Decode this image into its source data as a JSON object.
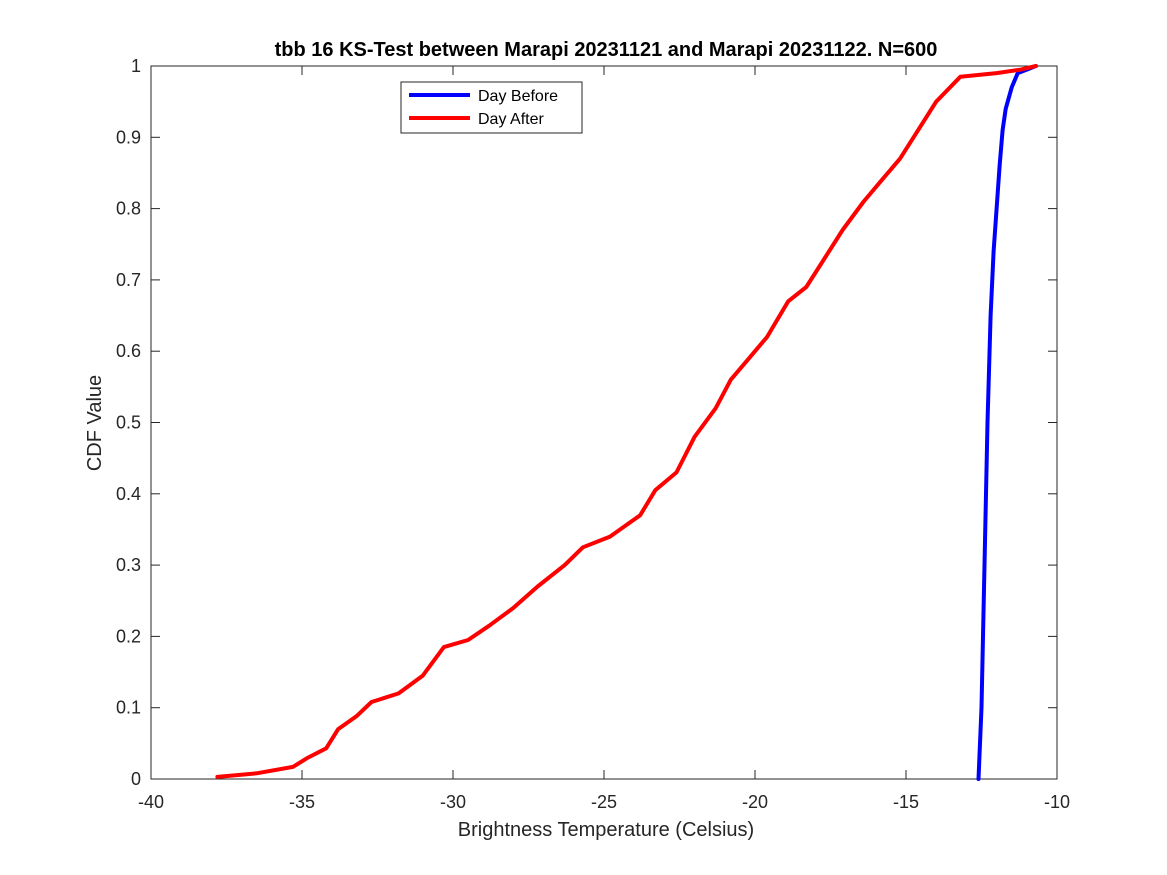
{
  "chart_data": {
    "type": "line",
    "title": "tbb 16 KS-Test between Marapi 20231121 and Marapi 20231122. N=600",
    "xlabel": "Brightness Temperature (Celsius)",
    "ylabel": "CDF Value",
    "xlim": [
      -40,
      -10
    ],
    "ylim": [
      0,
      1
    ],
    "xticks": [
      -40,
      -35,
      -30,
      -25,
      -20,
      -15,
      -10
    ],
    "yticks": [
      0,
      0.1,
      0.2,
      0.3,
      0.4,
      0.5,
      0.6,
      0.7,
      0.8,
      0.9,
      1
    ],
    "xtick_labels": [
      "-40",
      "-35",
      "-30",
      "-25",
      "-20",
      "-15",
      "-10"
    ],
    "ytick_labels": [
      "0",
      "0.1",
      "0.2",
      "0.3",
      "0.4",
      "0.5",
      "0.6",
      "0.7",
      "0.8",
      "0.9",
      "1"
    ],
    "grid": false,
    "legend_position": "top-left",
    "series": [
      {
        "name": "Day Before",
        "color": "#0000ff",
        "points": [
          [
            -12.6,
            0.0
          ],
          [
            -12.5,
            0.1
          ],
          [
            -12.4,
            0.3
          ],
          [
            -12.3,
            0.5
          ],
          [
            -12.2,
            0.65
          ],
          [
            -12.1,
            0.74
          ],
          [
            -12.0,
            0.8
          ],
          [
            -11.9,
            0.86
          ],
          [
            -11.8,
            0.91
          ],
          [
            -11.7,
            0.94
          ],
          [
            -11.5,
            0.97
          ],
          [
            -11.3,
            0.99
          ],
          [
            -11.0,
            0.995
          ],
          [
            -10.7,
            1.0
          ]
        ]
      },
      {
        "name": "Day After",
        "color": "#ff0000",
        "points": [
          [
            -37.8,
            0.003
          ],
          [
            -36.5,
            0.008
          ],
          [
            -35.3,
            0.017
          ],
          [
            -34.8,
            0.03
          ],
          [
            -34.2,
            0.043
          ],
          [
            -33.8,
            0.07
          ],
          [
            -33.2,
            0.088
          ],
          [
            -32.7,
            0.108
          ],
          [
            -31.8,
            0.12
          ],
          [
            -31.0,
            0.145
          ],
          [
            -30.3,
            0.185
          ],
          [
            -29.5,
            0.195
          ],
          [
            -28.8,
            0.215
          ],
          [
            -28.0,
            0.24
          ],
          [
            -27.2,
            0.27
          ],
          [
            -26.3,
            0.3
          ],
          [
            -25.7,
            0.325
          ],
          [
            -24.8,
            0.34
          ],
          [
            -23.8,
            0.37
          ],
          [
            -23.3,
            0.405
          ],
          [
            -22.6,
            0.43
          ],
          [
            -22.0,
            0.48
          ],
          [
            -21.3,
            0.52
          ],
          [
            -20.8,
            0.56
          ],
          [
            -20.2,
            0.59
          ],
          [
            -19.6,
            0.62
          ],
          [
            -18.9,
            0.67
          ],
          [
            -18.3,
            0.69
          ],
          [
            -17.7,
            0.73
          ],
          [
            -17.1,
            0.77
          ],
          [
            -16.4,
            0.81
          ],
          [
            -15.8,
            0.84
          ],
          [
            -15.2,
            0.87
          ],
          [
            -14.6,
            0.91
          ],
          [
            -14.0,
            0.95
          ],
          [
            -13.2,
            0.985
          ],
          [
            -12.0,
            0.99
          ],
          [
            -11.2,
            0.995
          ],
          [
            -10.7,
            1.0
          ]
        ]
      }
    ]
  }
}
